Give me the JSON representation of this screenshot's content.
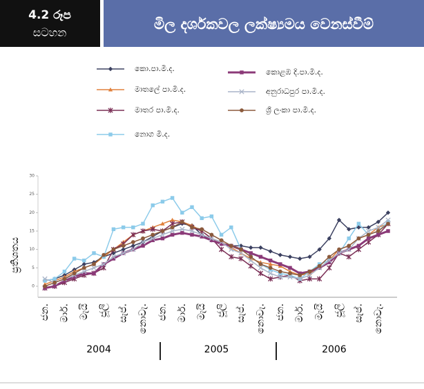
{
  "header": {
    "badge": [
      "4.2 රූප",
      "සටහන"
    ],
    "title": "මිල දර්ශකවල ලක්ෂ්‍යමය වෙනස්වීම්"
  },
  "chart_data": {
    "type": "line",
    "y_label": "ප්‍රතිශතය",
    "categories": [
      "ජන.",
      null,
      "මාර්.",
      null,
      "මැයි",
      null,
      "ජූලි",
      null,
      "සැප්.",
      null,
      "නොවැ.",
      null,
      "ජන.",
      null,
      "මාර්.",
      null,
      "මැයි",
      null,
      "ජූලි",
      null,
      "සැප්.",
      null,
      "නොවැ.",
      null,
      "ජන.",
      null,
      "මාර්.",
      null,
      "මැයි",
      null,
      "ජූලි",
      null,
      "සැප්.",
      null,
      "නොවැ.",
      null
    ],
    "year_labels": [
      "2004",
      "2005",
      "2006"
    ],
    "ylim": [
      -3,
      30
    ],
    "yticks": [
      0,
      5,
      10,
      15,
      20,
      25,
      30
    ],
    "series": [
      {
        "name": "කො.පා.මි.ද.",
        "color": "#3b4060",
        "marker": "diamond",
        "line_width": 1.5,
        "values": [
          1.5,
          2,
          3,
          4.5,
          6,
          6.5,
          8,
          9,
          10,
          11,
          12,
          13.5,
          15,
          16,
          17,
          16.5,
          14,
          12.5,
          11.5,
          11,
          11,
          10.5,
          10.5,
          9.5,
          8.5,
          8,
          7.5,
          8,
          10,
          13,
          18,
          15.5,
          16,
          16,
          17.5,
          20
        ]
      },
      {
        "name": "මාතලේ පා.මි.ද.",
        "color": "#e0803c",
        "marker": "triangle",
        "line_width": 1.5,
        "values": [
          0.5,
          1.5,
          2.5,
          4,
          5,
          6,
          8,
          10,
          12,
          14,
          15,
          16,
          17,
          18,
          17.5,
          16.5,
          15,
          13,
          12,
          10.5,
          9,
          7.5,
          6.5,
          6,
          5.5,
          4,
          3,
          3.5,
          5,
          7,
          10,
          11,
          13,
          14,
          16,
          17
        ]
      },
      {
        "name": "මාතර පා.මි.ද.",
        "color": "#7a2e55",
        "marker": "star",
        "line_width": 1.5,
        "values": [
          -0.5,
          0,
          1,
          2,
          3,
          3.5,
          5,
          10,
          11.5,
          14,
          15,
          15.5,
          15,
          17,
          17.5,
          16,
          15,
          13,
          10,
          8,
          7.5,
          5.5,
          3.5,
          2,
          2.5,
          3,
          1.5,
          2,
          2,
          5,
          9,
          8,
          10,
          12,
          14,
          17
        ]
      },
      {
        "name": "නොග මි.ද.",
        "color": "#8ccbea",
        "marker": "square",
        "line_width": 1.5,
        "values": [
          1.5,
          2,
          4,
          7.5,
          7,
          9,
          8,
          15.5,
          16,
          16,
          17,
          22,
          23,
          24,
          20,
          21.5,
          18.5,
          19,
          14,
          16,
          10,
          8,
          6,
          4.5,
          3.5,
          3,
          2,
          4,
          6,
          7,
          9,
          13,
          17,
          14,
          15,
          17.5
        ]
      },
      {
        "name": "කොළඹ දි.පා.මි.ද.",
        "color": "#8b3a78",
        "marker": "square",
        "line_width": 3,
        "values": [
          -0.5,
          0,
          1.5,
          2.5,
          3.5,
          3.5,
          6,
          7.5,
          9,
          10,
          11,
          12.5,
          13,
          14,
          14.5,
          14,
          13.5,
          12.5,
          11.5,
          11,
          10,
          9,
          8,
          7,
          6,
          5,
          3.5,
          4,
          5,
          6.5,
          9,
          10,
          11,
          13,
          14,
          15
        ]
      },
      {
        "name": "අනුරාධපුර පා.මි.ද.",
        "color": "#a9b4c8",
        "marker": "x",
        "line_width": 1.5,
        "values": [
          2,
          1,
          2,
          3,
          4,
          5,
          6,
          8,
          9,
          10,
          12,
          13,
          14,
          15,
          15.5,
          15,
          14,
          13,
          12,
          10,
          9,
          7,
          5,
          3.5,
          2.5,
          2.5,
          2,
          3,
          5,
          7,
          9,
          10,
          13,
          15,
          16,
          18
        ]
      },
      {
        "name": "ශ්‍රී ලංකා පා.මි.ද.",
        "color": "#8b5a3c",
        "marker": "circle",
        "line_width": 1.5,
        "values": [
          0,
          1,
          2,
          3.5,
          5,
          6,
          8.5,
          10,
          11,
          12,
          13,
          14,
          15,
          16,
          17.5,
          16,
          15.5,
          14,
          12.5,
          11,
          10,
          8,
          6,
          5,
          4,
          3.5,
          3,
          4,
          5.5,
          8,
          10,
          11,
          13,
          14,
          15,
          17
        ]
      }
    ]
  }
}
